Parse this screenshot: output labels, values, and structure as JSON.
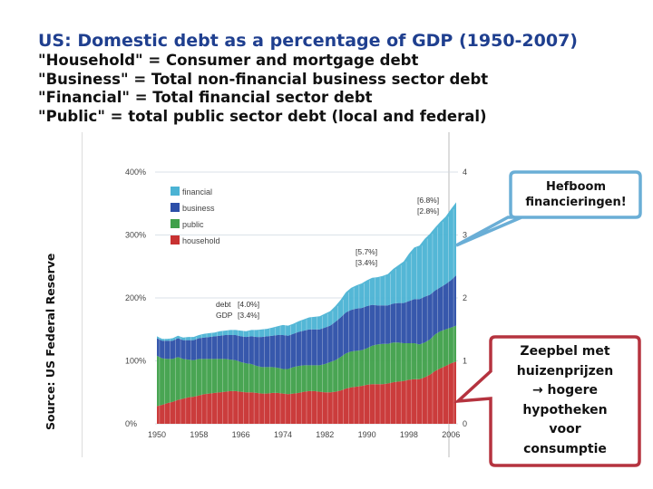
{
  "header": {
    "title_prefix": "US",
    "title_rest": ": Domestic debt as a percentage of GDP (1950-2007)",
    "definitions": [
      "\"Household\" = Consumer and mortgage debt",
      "\"Business\" = Total non-financial business sector debt",
      "\"Financial\" = Total financial sector debt",
      "\"Public\" = total public sector debt (local and federal)"
    ]
  },
  "source_label": "Source: US Federal Reserve",
  "callouts": {
    "leverage": "Hefboom financieringen!",
    "bubble_lines": [
      "Zeepbel met",
      "huizenprijzen",
      "→ hogere",
      "hypotheken",
      "voor",
      "consumptie"
    ]
  },
  "colors": {
    "financial": "#4bb3d4",
    "business": "#2c4fa8",
    "public": "#3fa04a",
    "household": "#c83232",
    "callout_blue_border": "#6aaed6",
    "callout_red_border": "#b5333f"
  },
  "chart_data": {
    "type": "area",
    "stacked": true,
    "x": [
      1950,
      1951,
      1952,
      1953,
      1954,
      1955,
      1956,
      1957,
      1958,
      1959,
      1960,
      1961,
      1962,
      1963,
      1964,
      1965,
      1966,
      1967,
      1968,
      1969,
      1970,
      1971,
      1972,
      1973,
      1974,
      1975,
      1976,
      1977,
      1978,
      1979,
      1980,
      1981,
      1982,
      1983,
      1984,
      1985,
      1986,
      1987,
      1988,
      1989,
      1990,
      1991,
      1992,
      1993,
      1994,
      1995,
      1996,
      1997,
      1998,
      1999,
      2000,
      2001,
      2002,
      2003,
      2004,
      2005,
      2006,
      2007
    ],
    "series": [
      {
        "name": "household",
        "values": [
          28,
          30,
          33,
          35,
          38,
          40,
          42,
          43,
          45,
          47,
          48,
          49,
          50,
          51,
          52,
          52,
          51,
          50,
          50,
          49,
          48,
          48,
          49,
          49,
          48,
          47,
          48,
          49,
          51,
          52,
          52,
          51,
          50,
          50,
          51,
          53,
          56,
          58,
          59,
          60,
          62,
          63,
          63,
          63,
          64,
          66,
          67,
          68,
          70,
          71,
          71,
          74,
          78,
          84,
          88,
          92,
          96,
          99
        ]
      },
      {
        "name": "public",
        "values": [
          80,
          74,
          70,
          68,
          68,
          63,
          60,
          58,
          58,
          56,
          55,
          54,
          53,
          52,
          50,
          49,
          47,
          46,
          45,
          43,
          42,
          42,
          41,
          40,
          39,
          40,
          42,
          43,
          42,
          41,
          41,
          42,
          45,
          48,
          50,
          53,
          56,
          57,
          57,
          57,
          58,
          61,
          63,
          64,
          63,
          63,
          62,
          60,
          58,
          57,
          55,
          55,
          56,
          58,
          59,
          58,
          57,
          57
        ]
      },
      {
        "name": "business",
        "values": [
          28,
          28,
          29,
          29,
          30,
          30,
          31,
          32,
          33,
          34,
          35,
          36,
          37,
          38,
          39,
          40,
          41,
          42,
          44,
          46,
          48,
          49,
          50,
          52,
          54,
          53,
          53,
          54,
          55,
          57,
          57,
          57,
          58,
          58,
          61,
          63,
          65,
          66,
          67,
          67,
          67,
          65,
          62,
          61,
          61,
          62,
          63,
          64,
          67,
          70,
          72,
          73,
          71,
          70,
          70,
          72,
          75,
          80
        ]
      },
      {
        "name": "financial",
        "values": [
          3,
          3,
          3,
          4,
          4,
          4,
          5,
          5,
          5,
          6,
          6,
          6,
          7,
          7,
          8,
          8,
          9,
          9,
          10,
          11,
          12,
          12,
          13,
          14,
          16,
          16,
          16,
          17,
          18,
          19,
          20,
          21,
          22,
          23,
          25,
          28,
          32,
          35,
          37,
          39,
          41,
          43,
          45,
          47,
          50,
          55,
          60,
          66,
          75,
          82,
          85,
          92,
          97,
          100,
          104,
          107,
          113,
          116
        ]
      }
    ],
    "legend": [
      "financial",
      "business",
      "public",
      "household"
    ],
    "legend_position": "top-left",
    "ylim": [
      0,
      400
    ],
    "y_ticks": [
      "0%",
      "100%",
      "200%",
      "300%",
      "400%"
    ],
    "x_ticks": [
      "1950",
      "1958",
      "1966",
      "1974",
      "1982",
      "1990",
      "1998",
      "2006"
    ],
    "annotations": {
      "debt_label": "debt",
      "gdp_label": "GDP",
      "debt_growth_1": "[4.0%]",
      "gdp_growth_1": "[3.4%]",
      "debt_growth_2": "[5.7%]",
      "gdp_growth_2": "[3.4%]",
      "debt_growth_3": "[6.8%]",
      "gdp_growth_3": "[2.8%]"
    }
  }
}
